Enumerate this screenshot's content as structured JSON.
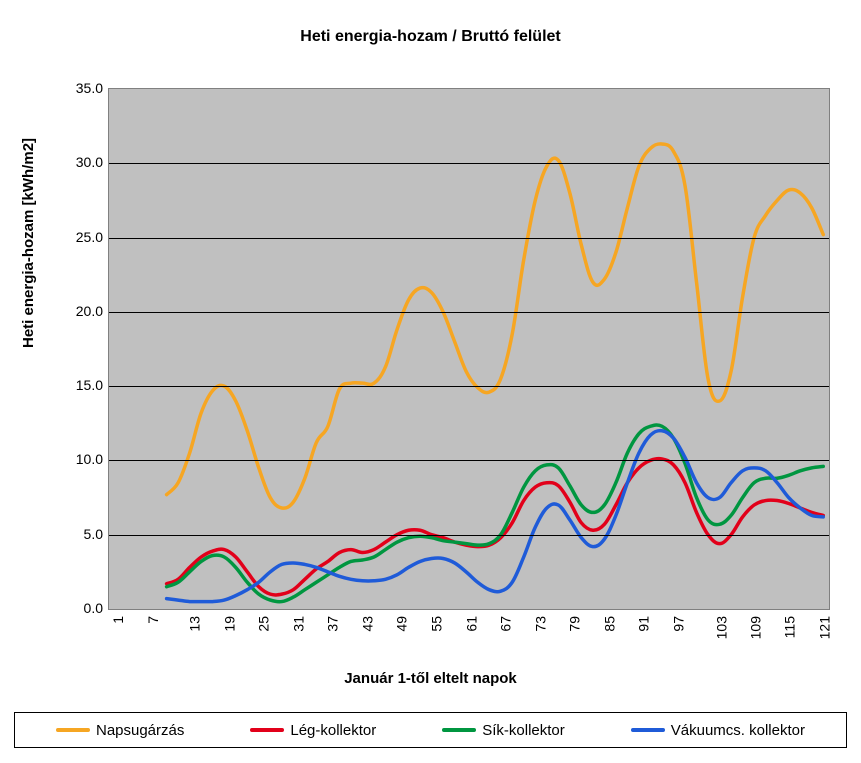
{
  "chart": {
    "type": "line",
    "title": "Heti energia-hozam / Bruttó felület",
    "title_fontsize": 16,
    "xlabel": "Január 1-től eltelt napok",
    "ylabel": "Heti energia-hozam [kWh/m2]",
    "label_fontsize": 15,
    "background_color": "#ffffff",
    "plot_background_color": "#c0c0c0",
    "grid_color": "#000000",
    "xlim": [
      1,
      126
    ],
    "ylim": [
      0,
      35
    ],
    "yticks": [
      0.0,
      5.0,
      10.0,
      15.0,
      20.0,
      25.0,
      30.0,
      35.0
    ],
    "ytick_labels": [
      "0.0",
      "5.0",
      "10.0",
      "15.0",
      "20.0",
      "25.0",
      "30.0",
      "35.0"
    ],
    "xticks": [
      1,
      7,
      13,
      19,
      25,
      31,
      37,
      43,
      49,
      55,
      61,
      67,
      73,
      79,
      85,
      91,
      97,
      103,
      109,
      115,
      121
    ],
    "ytick_fontsize": 14,
    "xtick_fontsize": 14,
    "xtick_rotation": -90,
    "line_width": 3.5,
    "series": [
      {
        "name": "Napsugárzás",
        "color": "#f6a623",
        "x": [
          11,
          13,
          15,
          17,
          19,
          21,
          23,
          25,
          27,
          29,
          31,
          33,
          35,
          37,
          39,
          41,
          43,
          45,
          47,
          49,
          51,
          53,
          55,
          57,
          59,
          61,
          63,
          65,
          67,
          69,
          71,
          73,
          75,
          77,
          79,
          81,
          83,
          85,
          87,
          89,
          91,
          93,
          95,
          97,
          99,
          101,
          103,
          105,
          107,
          109,
          111,
          113,
          115,
          117,
          119,
          121,
          123,
          125
        ],
        "y": [
          7.7,
          8.5,
          10.5,
          13.2,
          14.7,
          15.0,
          14.0,
          12.0,
          9.5,
          7.5,
          6.8,
          7.2,
          8.8,
          11.2,
          12.3,
          14.8,
          15.2,
          15.2,
          15.2,
          16.3,
          18.8,
          20.8,
          21.6,
          21.3,
          20.0,
          18.0,
          16.0,
          14.9,
          14.6,
          15.5,
          18.5,
          23.5,
          27.5,
          29.8,
          30.2,
          28.0,
          24.5,
          22.0,
          22.2,
          24.0,
          27.0,
          29.8,
          31.0,
          31.3,
          30.8,
          28.5,
          22.0,
          15.5,
          14.0,
          16.0,
          21.0,
          25.0,
          26.5,
          27.5,
          28.2,
          28.0,
          27.0,
          25.2
        ]
      },
      {
        "name": "Lég-kollektor",
        "color": "#e2001a",
        "x": [
          11,
          13,
          15,
          17,
          19,
          21,
          23,
          25,
          27,
          29,
          31,
          33,
          35,
          37,
          39,
          41,
          43,
          45,
          47,
          49,
          51,
          53,
          55,
          57,
          59,
          61,
          63,
          65,
          67,
          69,
          71,
          73,
          75,
          77,
          79,
          81,
          83,
          85,
          87,
          89,
          91,
          93,
          95,
          97,
          99,
          101,
          103,
          105,
          107,
          109,
          111,
          113,
          115,
          117,
          119,
          121,
          123,
          125
        ],
        "y": [
          1.7,
          2.0,
          2.8,
          3.5,
          3.9,
          4.0,
          3.5,
          2.5,
          1.5,
          1.0,
          1.0,
          1.3,
          2.0,
          2.7,
          3.2,
          3.8,
          4.0,
          3.8,
          4.0,
          4.5,
          5.0,
          5.3,
          5.3,
          5.0,
          4.8,
          4.5,
          4.3,
          4.2,
          4.3,
          4.8,
          5.8,
          7.3,
          8.2,
          8.5,
          8.3,
          7.2,
          5.8,
          5.3,
          5.7,
          7.0,
          8.5,
          9.5,
          10.0,
          10.1,
          9.7,
          8.5,
          6.5,
          5.0,
          4.4,
          5.0,
          6.2,
          7.0,
          7.3,
          7.3,
          7.1,
          6.8,
          6.5,
          6.3
        ]
      },
      {
        "name": "Sík-kollektor",
        "color": "#009640",
        "x": [
          11,
          13,
          15,
          17,
          19,
          21,
          23,
          25,
          27,
          29,
          31,
          33,
          35,
          37,
          39,
          41,
          43,
          45,
          47,
          49,
          51,
          53,
          55,
          57,
          59,
          61,
          63,
          65,
          67,
          69,
          71,
          73,
          75,
          77,
          79,
          81,
          83,
          85,
          87,
          89,
          91,
          93,
          95,
          97,
          99,
          101,
          103,
          105,
          107,
          109,
          111,
          113,
          115,
          117,
          119,
          121,
          123,
          125
        ],
        "y": [
          1.5,
          1.8,
          2.5,
          3.2,
          3.6,
          3.5,
          2.8,
          1.8,
          1.0,
          0.6,
          0.5,
          0.8,
          1.3,
          1.8,
          2.3,
          2.8,
          3.2,
          3.3,
          3.5,
          4.0,
          4.5,
          4.8,
          4.9,
          4.8,
          4.6,
          4.5,
          4.4,
          4.3,
          4.4,
          5.0,
          6.5,
          8.2,
          9.3,
          9.7,
          9.5,
          8.3,
          7.0,
          6.5,
          7.0,
          8.5,
          10.5,
          11.8,
          12.3,
          12.3,
          11.5,
          9.8,
          7.5,
          6.0,
          5.7,
          6.3,
          7.5,
          8.5,
          8.8,
          8.8,
          9.0,
          9.3,
          9.5,
          9.6
        ]
      },
      {
        "name": "Vákuumcs. kollektor",
        "color": "#1f5bd8",
        "x": [
          11,
          13,
          15,
          17,
          19,
          21,
          23,
          25,
          27,
          29,
          31,
          33,
          35,
          37,
          39,
          41,
          43,
          45,
          47,
          49,
          51,
          53,
          55,
          57,
          59,
          61,
          63,
          65,
          67,
          69,
          71,
          73,
          75,
          77,
          79,
          81,
          83,
          85,
          87,
          89,
          91,
          93,
          95,
          97,
          99,
          101,
          103,
          105,
          107,
          109,
          111,
          113,
          115,
          117,
          119,
          121,
          123,
          125
        ],
        "y": [
          0.7,
          0.6,
          0.5,
          0.5,
          0.5,
          0.6,
          0.9,
          1.3,
          1.8,
          2.5,
          3.0,
          3.1,
          3.0,
          2.8,
          2.5,
          2.2,
          2.0,
          1.9,
          1.9,
          2.0,
          2.3,
          2.8,
          3.2,
          3.4,
          3.4,
          3.1,
          2.5,
          1.8,
          1.3,
          1.2,
          1.8,
          3.5,
          5.5,
          6.8,
          7.0,
          6.0,
          4.8,
          4.2,
          4.7,
          6.3,
          8.5,
          10.5,
          11.7,
          12.0,
          11.5,
          10.2,
          8.5,
          7.5,
          7.5,
          8.5,
          9.3,
          9.5,
          9.3,
          8.5,
          7.5,
          6.8,
          6.3,
          6.2
        ]
      }
    ],
    "legend": {
      "position": "bottom",
      "items": [
        {
          "label": "Napsugárzás",
          "color": "#f6a623"
        },
        {
          "label": "Lég-kollektor",
          "color": "#e2001a"
        },
        {
          "label": "Sík-kollektor",
          "color": "#009640"
        },
        {
          "label": "Vákuumcs. kollektor",
          "color": "#1f5bd8"
        }
      ]
    }
  }
}
